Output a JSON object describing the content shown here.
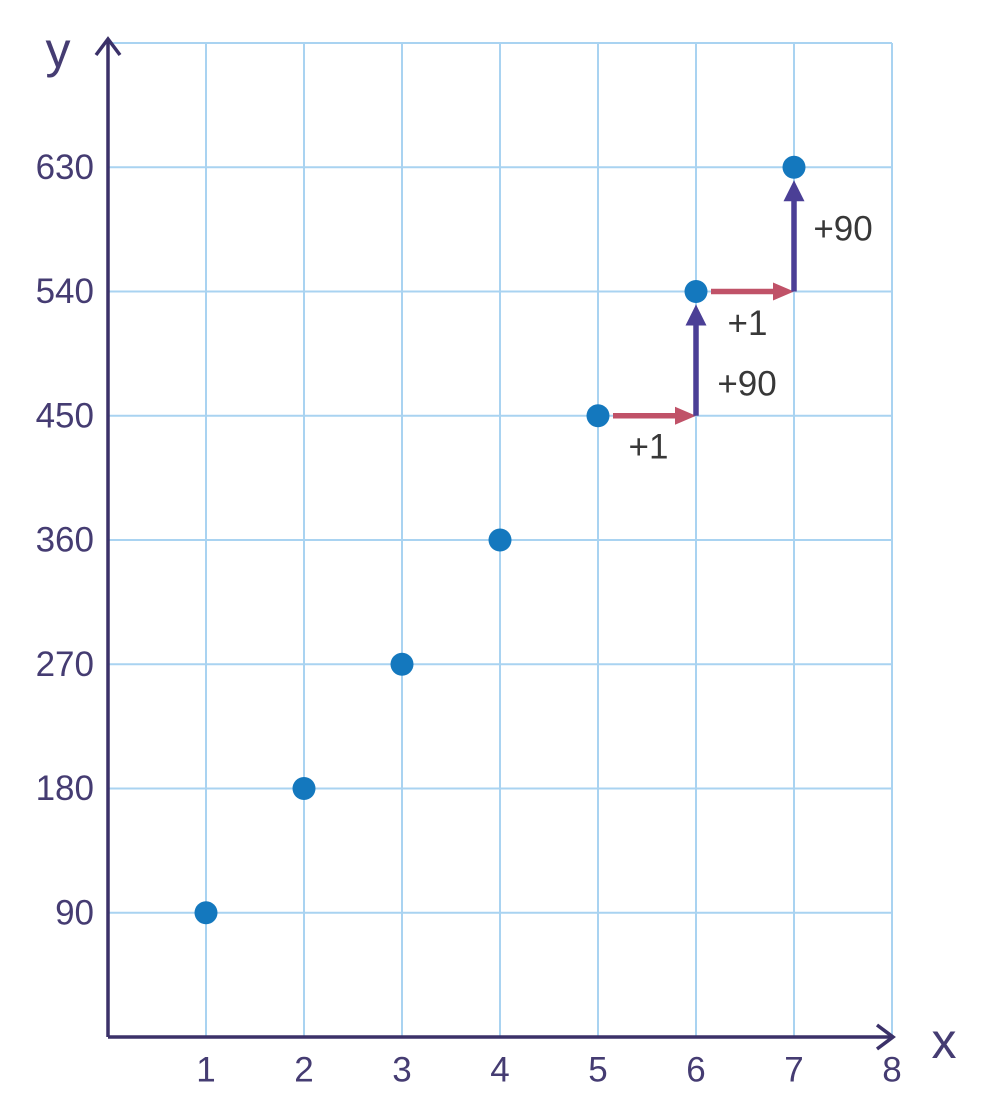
{
  "chart_data": {
    "type": "scatter",
    "title": "",
    "xlabel": "x",
    "ylabel": "y",
    "points": [
      {
        "x": 1,
        "y": 90
      },
      {
        "x": 2,
        "y": 180
      },
      {
        "x": 3,
        "y": 270
      },
      {
        "x": 4,
        "y": 360
      },
      {
        "x": 5,
        "y": 450
      },
      {
        "x": 6,
        "y": 540
      },
      {
        "x": 7,
        "y": 630
      }
    ],
    "xlim": [
      0,
      8
    ],
    "ylim": [
      0,
      720
    ],
    "grid": true,
    "grid_xstep": 1,
    "grid_ystep": 90,
    "xtick_values": [
      1,
      2,
      3,
      4,
      5,
      6,
      7,
      8
    ],
    "ytick_values": [
      90,
      180,
      270,
      360,
      450,
      540,
      630
    ],
    "legend": "none",
    "annotations": [
      {
        "kind": "arrow-right",
        "from": {
          "x": 5,
          "y": 450
        },
        "to": {
          "x": 6,
          "y": 450
        },
        "label": "+1",
        "color_key": "run_arrow",
        "label_offset": [
          -6,
          31
        ]
      },
      {
        "kind": "arrow-up",
        "from": {
          "x": 6,
          "y": 450
        },
        "to": {
          "x": 6,
          "y": 540
        },
        "label": "+90",
        "color_key": "rise_arrow",
        "label_offset": [
          51,
          24
        ]
      },
      {
        "kind": "arrow-right",
        "from": {
          "x": 6,
          "y": 540
        },
        "to": {
          "x": 7,
          "y": 540
        },
        "label": "+1",
        "color_key": "run_arrow",
        "label_offset": [
          -5,
          32
        ]
      },
      {
        "kind": "arrow-up",
        "from": {
          "x": 7,
          "y": 540
        },
        "to": {
          "x": 7,
          "y": 630
        },
        "label": "+90",
        "color_key": "rise_arrow",
        "label_offset": [
          49,
          -7
        ]
      }
    ],
    "colors": {
      "background": "#ffffff",
      "grid": "#a9d3f1",
      "axis": "#3b3169",
      "tick_label": "#453c72",
      "axis_label": "#453c72",
      "point": "#1478be",
      "run_arrow": "#c05268",
      "rise_arrow": "#4b3f96",
      "annotation_text": "#383838"
    }
  }
}
